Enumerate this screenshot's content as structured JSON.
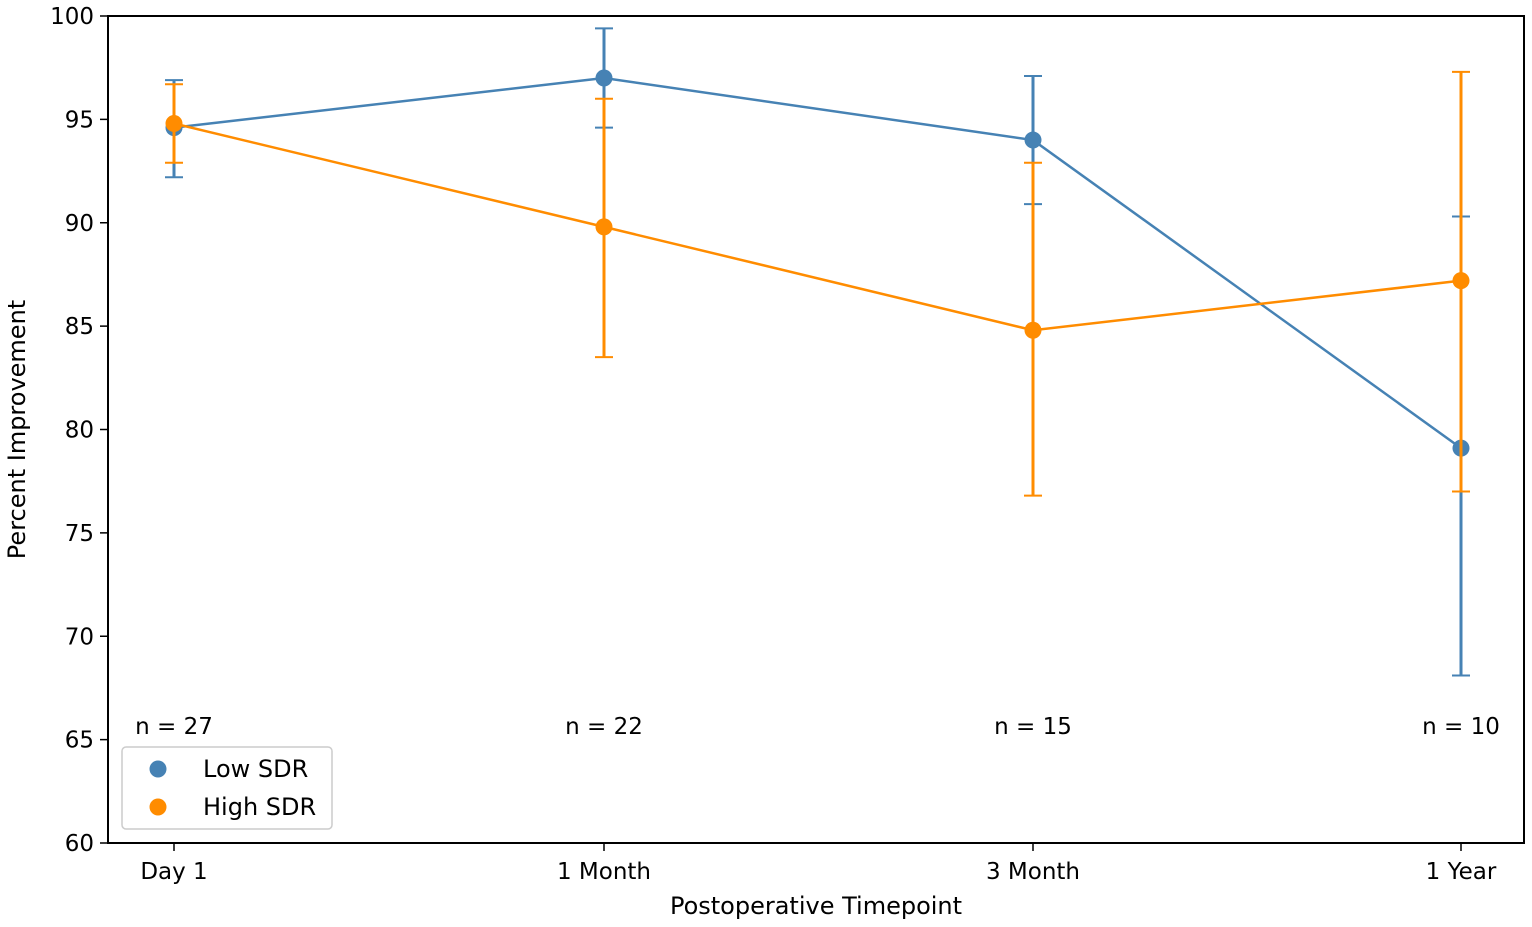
{
  "chart_data": {
    "type": "line",
    "title": "",
    "xlabel": "Postoperative Timepoint",
    "ylabel": "Percent Improvement",
    "ylim": [
      60,
      100
    ],
    "yticks": [
      60,
      65,
      70,
      75,
      80,
      85,
      90,
      95,
      100
    ],
    "grid": false,
    "legend_position": "bottom-left",
    "categories": [
      "Day 1",
      "1 Month",
      "3 Month",
      "1 Year"
    ],
    "sample_sizes": [
      "n = 27",
      "n = 22",
      "n = 15",
      "n = 10"
    ],
    "series": [
      {
        "name": "Low SDR",
        "color": "#4682b4",
        "values": [
          94.6,
          97.0,
          94.0,
          79.1
        ],
        "error_low": [
          92.2,
          94.6,
          90.9,
          68.1
        ],
        "error_high": [
          96.9,
          99.4,
          97.1,
          90.3
        ]
      },
      {
        "name": "High SDR",
        "color": "#ff8c00",
        "values": [
          94.8,
          89.8,
          84.8,
          87.2
        ],
        "error_low": [
          92.9,
          83.5,
          76.8,
          77.0
        ],
        "error_high": [
          96.7,
          96.0,
          92.9,
          97.3
        ]
      }
    ]
  }
}
